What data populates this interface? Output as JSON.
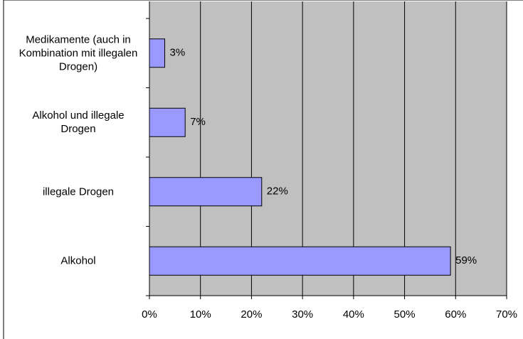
{
  "chart_data": {
    "type": "bar",
    "orientation": "horizontal",
    "categories": [
      "Medikamente (auch in Kombination mit illegalen Drogen)",
      "Alkohol und illegale Drogen",
      "illegale Drogen",
      "Alkohol"
    ],
    "values": [
      3,
      7,
      22,
      59
    ],
    "value_labels": [
      "3%",
      "7%",
      "22%",
      "59%"
    ],
    "color": "#9999ff",
    "xlim": [
      0,
      70
    ],
    "xticks": [
      {
        "value": 0,
        "label": "0%"
      },
      {
        "value": 10,
        "label": "10%"
      },
      {
        "value": 20,
        "label": "20%"
      },
      {
        "value": 30,
        "label": "30%"
      },
      {
        "value": 40,
        "label": "40%"
      },
      {
        "value": 50,
        "label": "50%"
      },
      {
        "value": 60,
        "label": "60%"
      },
      {
        "value": 70,
        "label": "70%"
      }
    ],
    "grid": true
  }
}
